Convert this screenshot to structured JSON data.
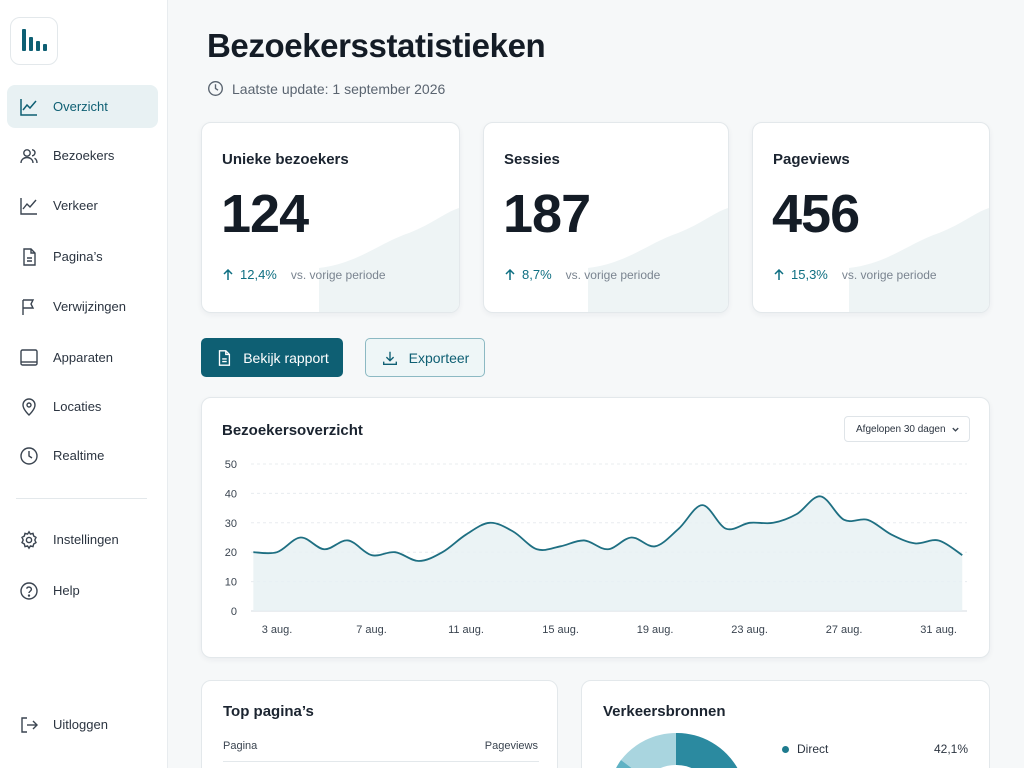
{
  "sidebar": {
    "items": [
      {
        "label": "Overzicht",
        "icon": "trend-line-icon",
        "active": true
      },
      {
        "label": "Bezoekers",
        "icon": "users-icon"
      },
      {
        "label": "Verkeer",
        "icon": "trend-line-icon"
      },
      {
        "label": "Pagina’s",
        "icon": "document-icon"
      },
      {
        "label": "Verwijzingen",
        "icon": "flag-icon"
      },
      {
        "label": "Apparaten",
        "icon": "tablet-icon"
      },
      {
        "label": "Locaties",
        "icon": "map-pin-icon"
      },
      {
        "label": "Realtime",
        "icon": "clock-icon"
      }
    ],
    "bottom_items": [
      {
        "label": "Instellingen",
        "icon": "gear-icon"
      },
      {
        "label": "Help",
        "icon": "help-icon"
      }
    ],
    "logout_label": "Uitloggen"
  },
  "header": {
    "title": "Bezoekersstatistieken",
    "last_update": "Laatste update: 1 september 2026"
  },
  "kpis": [
    {
      "label": "Unieke bezoekers",
      "value": "124",
      "change": "12,4%",
      "compare": "vs. vorige periode"
    },
    {
      "label": "Sessies",
      "value": "187",
      "change": "8,7%",
      "compare": "vs. vorige periode"
    },
    {
      "label": "Pageviews",
      "value": "456",
      "change": "15,3%",
      "compare": "vs. vorige periode"
    }
  ],
  "actions": {
    "report_label": "Bekijk rapport",
    "export_label": "Exporteer"
  },
  "overview": {
    "title": "Bezoekersoverzicht",
    "range": "Afgelopen 30 dagen"
  },
  "chart_data": {
    "type": "area",
    "title": "Bezoekersoverzicht",
    "xlabel": "",
    "ylabel": "",
    "ylim": [
      0,
      50
    ],
    "yticks": [
      0,
      10,
      20,
      30,
      40,
      50
    ],
    "x_tick_labels": [
      "3 aug.",
      "7 aug.",
      "11 aug.",
      "15 aug.",
      "19 aug.",
      "23 aug.",
      "27 aug.",
      "31 aug."
    ],
    "x_tick_days": [
      3,
      7,
      11,
      15,
      19,
      23,
      27,
      31
    ],
    "x": [
      2,
      3,
      4,
      5,
      6,
      7,
      8,
      9,
      10,
      11,
      12,
      13,
      14,
      15,
      16,
      17,
      18,
      19,
      20,
      21,
      22,
      23,
      24,
      25,
      26,
      27,
      28,
      29,
      30,
      31,
      32
    ],
    "values": [
      20,
      20,
      25,
      21,
      24,
      19,
      20,
      17,
      20,
      26,
      30,
      27,
      21,
      22,
      24,
      21,
      25,
      22,
      28,
      36,
      28,
      30,
      30,
      33,
      39,
      31,
      31,
      26,
      23,
      24,
      19
    ],
    "grid": true,
    "color": "#1e6f82"
  },
  "top_pages": {
    "title": "Top pagina’s",
    "col_page": "Pagina",
    "col_views": "Pageviews"
  },
  "sources": {
    "title": "Verkeersbronnen",
    "legend": [
      {
        "label": "Direct",
        "value": "42,1%"
      }
    ]
  },
  "colors": {
    "accent": "#0e5f73",
    "active_bg": "#e8f1f3"
  }
}
